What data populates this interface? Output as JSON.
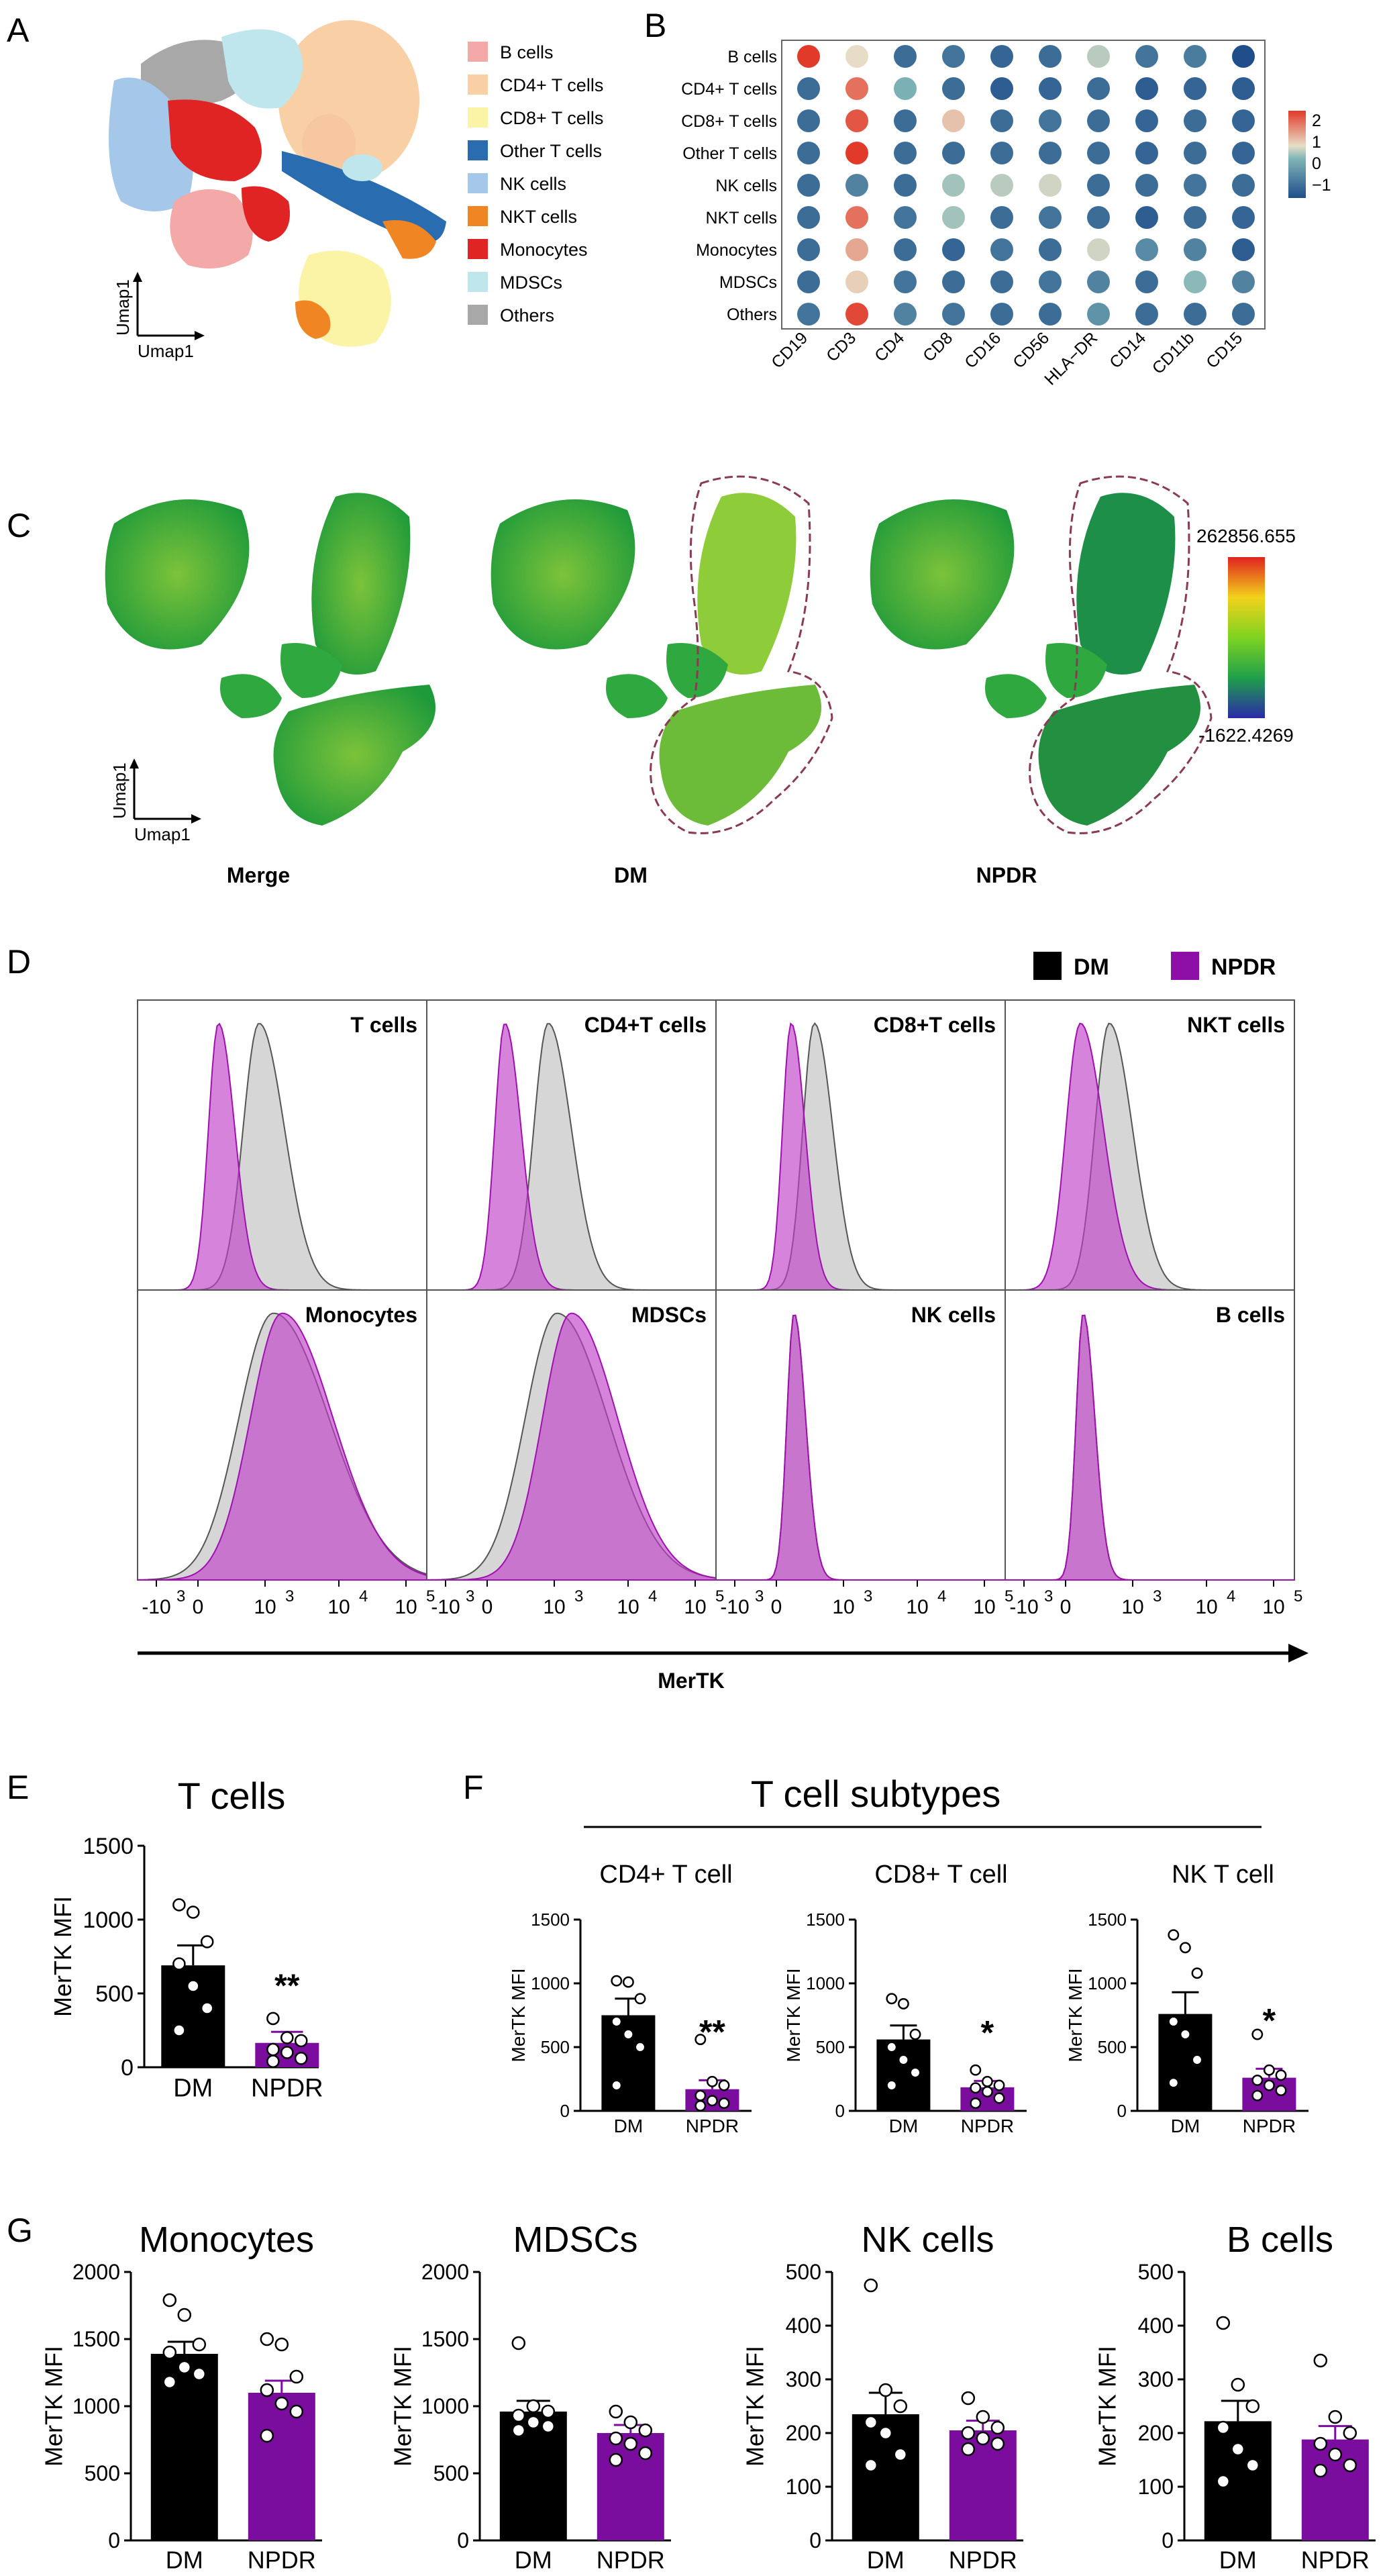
{
  "panel_labels": {
    "A": "A",
    "B": "B",
    "C": "C",
    "D": "D",
    "E": "E",
    "F": "F",
    "G": "G"
  },
  "colors": {
    "dm": "#000000",
    "npdr": "#7a0c9e",
    "npdr_hist": "#b01fbf",
    "dm_hist": "#8c8c8c",
    "outline": "#8b3a55"
  },
  "panel_a": {
    "axis_x": "Umap1",
    "axis_y": "Umap1",
    "legend": [
      {
        "label": "B cells",
        "color": "#f2a9a8"
      },
      {
        "label": "CD4+ T cells",
        "color": "#f9cfa6"
      },
      {
        "label": "CD8+ T cells",
        "color": "#fbf3a6"
      },
      {
        "label": "Other T cells",
        "color": "#2a6cb0"
      },
      {
        "label": "NK cells",
        "color": "#a5c8ea"
      },
      {
        "label": "NKT cells",
        "color": "#f08523"
      },
      {
        "label": "Monocytes",
        "color": "#e02424"
      },
      {
        "label": "MDSCs",
        "color": "#bfe6ec"
      },
      {
        "label": "Others",
        "color": "#a8a8a8"
      }
    ]
  },
  "panel_b": {
    "rows": [
      "B cells",
      "CD4+ T cells",
      "CD8+ T cells",
      "Other T cells",
      "NK cells",
      "NKT cells",
      "Monocytes",
      "MDSCs",
      "Others"
    ],
    "columns": [
      "CD19",
      "CD3",
      "CD4",
      "CD8",
      "CD16",
      "CD56",
      "HLA−DR",
      "CD14",
      "CD11b",
      "CD15"
    ],
    "scale_ticks": [
      "2",
      "1",
      "0",
      "−1"
    ],
    "values": [
      [
        2.0,
        0.8,
        -0.6,
        -0.5,
        -0.7,
        -0.6,
        0.6,
        -0.5,
        -0.4,
        -1.0
      ],
      [
        -0.6,
        1.6,
        0.3,
        -0.6,
        -0.8,
        -0.7,
        -0.6,
        -0.8,
        -0.7,
        -0.8
      ],
      [
        -0.6,
        1.8,
        -0.6,
        1.0,
        -0.6,
        -0.5,
        -0.6,
        -0.7,
        -0.6,
        -0.7
      ],
      [
        -0.6,
        2.0,
        -0.6,
        -0.6,
        -0.6,
        -0.6,
        -0.6,
        -0.7,
        -0.6,
        -0.7
      ],
      [
        -0.6,
        -0.3,
        -0.6,
        0.5,
        0.6,
        0.7,
        -0.6,
        -0.6,
        -0.5,
        -0.6
      ],
      [
        -0.6,
        1.6,
        -0.5,
        0.5,
        -0.6,
        -0.5,
        -0.6,
        -0.8,
        -0.6,
        -0.7
      ],
      [
        -0.6,
        1.2,
        -0.6,
        -0.7,
        -0.5,
        -0.6,
        0.7,
        -0.2,
        -0.3,
        -0.8
      ],
      [
        -0.6,
        0.9,
        -0.5,
        -0.6,
        -0.6,
        -0.5,
        -0.3,
        -0.6,
        0.4,
        -0.3
      ],
      [
        -0.5,
        1.9,
        -0.3,
        -0.5,
        -0.6,
        -0.6,
        -0.1,
        -0.6,
        -0.6,
        -0.6
      ]
    ]
  },
  "panel_c": {
    "labels": [
      "Merge",
      "DM",
      "NPDR"
    ],
    "axis_x": "Umap1",
    "axis_y": "Umap1",
    "scale_max": "262856.655",
    "scale_min": "-1622.4269"
  },
  "panel_d": {
    "legend": [
      {
        "label": "DM"
      },
      {
        "label": "NPDR"
      }
    ],
    "x_title": "MerTK",
    "tick_labels": [
      "-10",
      "3",
      "0",
      "10",
      "3",
      "10",
      "4",
      "10",
      "5"
    ],
    "tick_short": {
      "neg": "-10",
      "zero": "0",
      "ten": "10",
      "e3": "3",
      "e4": "4",
      "e5": "5"
    },
    "cells": [
      {
        "title": "T cells",
        "dm_mode": 0.42,
        "npdr_mode": 0.28,
        "dm_w": 0.055,
        "npdr_w": 0.035
      },
      {
        "title": "CD4+T cells",
        "dm_mode": 0.42,
        "npdr_mode": 0.27,
        "dm_w": 0.05,
        "npdr_w": 0.035
      },
      {
        "title": "CD8+T cells",
        "dm_mode": 0.34,
        "npdr_mode": 0.26,
        "dm_w": 0.04,
        "npdr_w": 0.03
      },
      {
        "title": "NKT cells",
        "dm_mode": 0.36,
        "npdr_mode": 0.26,
        "dm_w": 0.05,
        "npdr_w": 0.05
      },
      {
        "title": "Monocytes",
        "dm_mode": 0.47,
        "npdr_mode": 0.5,
        "dm_w": 0.12,
        "npdr_w": 0.11
      },
      {
        "title": "MDSCs",
        "dm_mode": 0.45,
        "npdr_mode": 0.5,
        "dm_w": 0.11,
        "npdr_w": 0.1
      },
      {
        "title": "NK cells",
        "dm_mode": 0.27,
        "npdr_mode": 0.27,
        "dm_w": 0.025,
        "npdr_w": 0.025
      },
      {
        "title": "B cells",
        "dm_mode": 0.27,
        "npdr_mode": 0.27,
        "dm_w": 0.025,
        "npdr_w": 0.025
      }
    ]
  },
  "panel_f_header": "T cell subtypes",
  "chart_data": [
    {
      "type": "bar",
      "panel": "E",
      "title": "T cells",
      "ylabel": "MerTK MFI",
      "categories": [
        "DM",
        "NPDR"
      ],
      "ylim": [
        0,
        1500
      ],
      "yticks": [
        "0",
        "500",
        "1000",
        "1500"
      ],
      "means": [
        690,
        165
      ],
      "sem": [
        135,
        75
      ],
      "points": [
        [
          1100,
          1050,
          850,
          700,
          550,
          400,
          250
        ],
        [
          330,
          200,
          180,
          120,
          100,
          60,
          40
        ]
      ],
      "significance": "**"
    },
    {
      "type": "bar",
      "panel": "F",
      "title": "CD4+ T cell",
      "ylabel": "MerTK MFI",
      "categories": [
        "DM",
        "NPDR"
      ],
      "ylim": [
        0,
        1500
      ],
      "yticks": [
        "0",
        "500",
        "1000",
        "1500"
      ],
      "means": [
        750,
        170
      ],
      "sem": [
        130,
        70
      ],
      "points": [
        [
          1020,
          1010,
          880,
          700,
          600,
          500,
          200
        ],
        [
          560,
          230,
          200,
          120,
          80,
          60,
          40
        ]
      ],
      "significance": "**"
    },
    {
      "type": "bar",
      "panel": "F",
      "title": "CD8+ T cell",
      "ylabel": "MerTK MFI",
      "categories": [
        "DM",
        "NPDR"
      ],
      "ylim": [
        0,
        1500
      ],
      "yticks": [
        "0",
        "500",
        "1000",
        "1500"
      ],
      "means": [
        560,
        185
      ],
      "sem": [
        110,
        50
      ],
      "points": [
        [
          880,
          840,
          600,
          500,
          400,
          300,
          200
        ],
        [
          320,
          230,
          200,
          180,
          150,
          100,
          60
        ]
      ],
      "significance": "*"
    },
    {
      "type": "bar",
      "panel": "F",
      "title": "NK T cell",
      "ylabel": "MerTK MFI",
      "categories": [
        "DM",
        "NPDR"
      ],
      "ylim": [
        0,
        1500
      ],
      "yticks": [
        "0",
        "500",
        "1000",
        "1500"
      ],
      "means": [
        760,
        260
      ],
      "sem": [
        170,
        70
      ],
      "points": [
        [
          1380,
          1280,
          1080,
          700,
          600,
          400,
          220
        ],
        [
          600,
          320,
          280,
          240,
          200,
          160,
          120
        ]
      ],
      "significance": "*"
    },
    {
      "type": "bar",
      "panel": "G",
      "title": "Monocytes",
      "ylabel": "MerTK MFI",
      "categories": [
        "DM",
        "NPDR"
      ],
      "ylim": [
        0,
        2000
      ],
      "yticks": [
        "0",
        "500",
        "1000",
        "1500",
        "2000"
      ],
      "means": [
        1390,
        1100
      ],
      "sem": [
        90,
        90
      ],
      "points": [
        [
          1790,
          1680,
          1460,
          1400,
          1290,
          1240,
          1180
        ],
        [
          1500,
          1460,
          1220,
          1120,
          1020,
          960,
          780
        ]
      ],
      "significance": ""
    },
    {
      "type": "bar",
      "panel": "G",
      "title": "MDSCs",
      "ylabel": "MerTK MFI",
      "categories": [
        "DM",
        "NPDR"
      ],
      "ylim": [
        0,
        2000
      ],
      "yticks": [
        "0",
        "500",
        "1000",
        "1500",
        "2000"
      ],
      "means": [
        960,
        800
      ],
      "sem": [
        80,
        60
      ],
      "points": [
        [
          1470,
          1000,
          960,
          930,
          880,
          850,
          820
        ],
        [
          960,
          880,
          820,
          760,
          720,
          650,
          600
        ]
      ],
      "significance": ""
    },
    {
      "type": "bar",
      "panel": "G",
      "title": "NK cells",
      "ylabel": "MerTK MFI",
      "categories": [
        "DM",
        "NPDR"
      ],
      "ylim": [
        0,
        500
      ],
      "yticks": [
        "0",
        "100",
        "200",
        "300",
        "400",
        "500"
      ],
      "means": [
        235,
        205
      ],
      "sem": [
        40,
        18
      ],
      "points": [
        [
          475,
          280,
          250,
          220,
          200,
          160,
          140
        ],
        [
          265,
          230,
          210,
          200,
          190,
          180,
          170
        ]
      ],
      "significance": ""
    },
    {
      "type": "bar",
      "panel": "G",
      "title": "B cells",
      "ylabel": "MerTK MFI",
      "categories": [
        "DM",
        "NPDR"
      ],
      "ylim": [
        0,
        500
      ],
      "yticks": [
        "0",
        "100",
        "200",
        "300",
        "400",
        "500"
      ],
      "means": [
        222,
        188
      ],
      "sem": [
        38,
        25
      ],
      "points": [
        [
          405,
          290,
          250,
          210,
          170,
          140,
          110
        ],
        [
          335,
          230,
          200,
          180,
          160,
          140,
          130
        ]
      ],
      "significance": ""
    }
  ]
}
